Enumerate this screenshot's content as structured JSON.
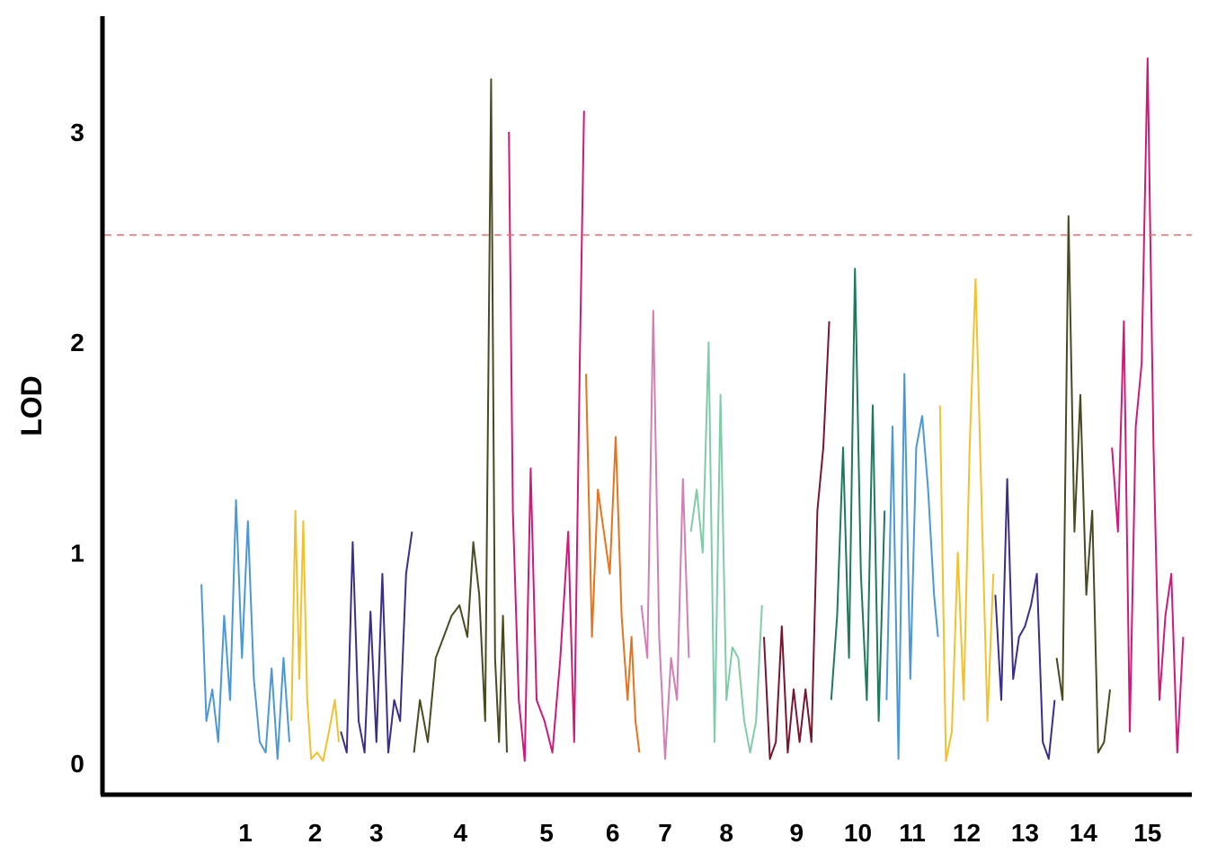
{
  "chart_data": {
    "type": "line",
    "title": "",
    "xlabel": "",
    "ylabel": "LOD",
    "ylim": [
      -0.15,
      3.55
    ],
    "yticks": [
      0,
      1,
      2,
      3
    ],
    "xlim": [
      0,
      1
    ],
    "grid": false,
    "legend": "none",
    "threshold": {
      "value": 2.51,
      "color": "#ff6b6b",
      "style": "dashed"
    },
    "series": [
      {
        "label": "1",
        "color": "#4a98d6",
        "x": [
          0.051,
          0.056,
          0.062,
          0.068,
          0.074,
          0.08,
          0.086,
          0.092,
          0.098,
          0.104,
          0.11,
          0.116,
          0.122,
          0.128,
          0.134,
          0.14
        ],
        "y": [
          0.85,
          0.2,
          0.35,
          0.1,
          0.7,
          0.3,
          1.25,
          0.5,
          1.15,
          0.4,
          0.1,
          0.05,
          0.45,
          0.02,
          0.5,
          0.1
        ]
      },
      {
        "label": "2",
        "color": "#f2c12e",
        "x": [
          0.142,
          0.146,
          0.15,
          0.154,
          0.158,
          0.162,
          0.168,
          0.174,
          0.18,
          0.186,
          0.19
        ],
        "y": [
          0.2,
          1.2,
          0.4,
          1.15,
          0.3,
          0.02,
          0.05,
          0.01,
          0.15,
          0.3,
          0.1
        ]
      },
      {
        "label": "3",
        "color": "#3b2e8a",
        "x": [
          0.192,
          0.198,
          0.204,
          0.21,
          0.216,
          0.222,
          0.228,
          0.234,
          0.24,
          0.246,
          0.252,
          0.258,
          0.264
        ],
        "y": [
          0.15,
          0.05,
          1.05,
          0.2,
          0.05,
          0.72,
          0.1,
          0.9,
          0.05,
          0.3,
          0.2,
          0.9,
          1.1
        ]
      },
      {
        "label": "4",
        "color": "#4a4a22",
        "x": [
          0.266,
          0.272,
          0.28,
          0.288,
          0.296,
          0.304,
          0.312,
          0.32,
          0.326,
          0.332,
          0.338,
          0.344,
          0.348,
          0.352,
          0.356,
          0.36
        ],
        "y": [
          0.05,
          0.3,
          0.1,
          0.5,
          0.6,
          0.7,
          0.75,
          0.6,
          1.05,
          0.8,
          0.2,
          3.25,
          0.5,
          0.1,
          0.7,
          0.05
        ]
      },
      {
        "label": "5",
        "color": "#d1197a",
        "x": [
          0.362,
          0.366,
          0.372,
          0.378,
          0.384,
          0.39,
          0.398,
          0.406,
          0.414,
          0.422,
          0.428,
          0.434,
          0.438
        ],
        "y": [
          3.0,
          1.2,
          0.3,
          0.01,
          1.4,
          0.3,
          0.2,
          0.05,
          0.5,
          1.1,
          0.1,
          2.0,
          3.1
        ]
      },
      {
        "label": "6",
        "color": "#e8731c",
        "x": [
          0.44,
          0.446,
          0.452,
          0.458,
          0.464,
          0.47,
          0.476,
          0.482,
          0.486,
          0.49,
          0.494
        ],
        "y": [
          1.85,
          0.6,
          1.3,
          1.1,
          0.9,
          1.55,
          0.7,
          0.3,
          0.6,
          0.2,
          0.05
        ]
      },
      {
        "label": "7",
        "color": "#d17fb5",
        "x": [
          0.496,
          0.502,
          0.508,
          0.514,
          0.52,
          0.526,
          0.532,
          0.538,
          0.544
        ],
        "y": [
          0.75,
          0.5,
          2.15,
          0.6,
          0.02,
          0.5,
          0.3,
          1.35,
          0.5
        ]
      },
      {
        "label": "8",
        "color": "#7fcca8",
        "x": [
          0.546,
          0.552,
          0.558,
          0.564,
          0.57,
          0.576,
          0.582,
          0.588,
          0.594,
          0.6,
          0.606,
          0.612,
          0.618
        ],
        "y": [
          1.1,
          1.3,
          1.0,
          2.0,
          0.1,
          1.75,
          0.3,
          0.55,
          0.5,
          0.2,
          0.05,
          0.2,
          0.75
        ]
      },
      {
        "label": "9",
        "color": "#7a1530",
        "x": [
          0.62,
          0.626,
          0.632,
          0.638,
          0.644,
          0.65,
          0.656,
          0.662,
          0.668,
          0.674,
          0.68,
          0.686
        ],
        "y": [
          0.6,
          0.02,
          0.1,
          0.65,
          0.05,
          0.35,
          0.1,
          0.35,
          0.1,
          1.2,
          1.5,
          2.1
        ]
      },
      {
        "label": "10",
        "color": "#1d7a5a",
        "x": [
          0.688,
          0.694,
          0.7,
          0.706,
          0.712,
          0.718,
          0.724,
          0.73,
          0.736,
          0.742
        ],
        "y": [
          0.3,
          0.7,
          1.5,
          0.5,
          2.35,
          0.9,
          0.3,
          1.7,
          0.2,
          1.2
        ]
      },
      {
        "label": "11",
        "color": "#4a98d6",
        "x": [
          0.744,
          0.75,
          0.756,
          0.762,
          0.768,
          0.774,
          0.78,
          0.786,
          0.792,
          0.796
        ],
        "y": [
          0.3,
          1.6,
          0.02,
          1.85,
          0.4,
          1.5,
          1.65,
          1.3,
          0.8,
          0.6
        ]
      },
      {
        "label": "12",
        "color": "#f2c12e",
        "x": [
          0.798,
          0.804,
          0.81,
          0.816,
          0.822,
          0.828,
          0.834,
          0.84,
          0.846,
          0.852
        ],
        "y": [
          1.7,
          0.01,
          0.15,
          1.0,
          0.3,
          1.5,
          2.3,
          1.25,
          0.2,
          0.9
        ]
      },
      {
        "label": "13",
        "color": "#3b2e8a",
        "x": [
          0.854,
          0.86,
          0.866,
          0.872,
          0.878,
          0.884,
          0.89,
          0.896,
          0.902,
          0.908,
          0.914
        ],
        "y": [
          0.8,
          0.3,
          1.35,
          0.4,
          0.6,
          0.65,
          0.75,
          0.9,
          0.1,
          0.02,
          0.3
        ]
      },
      {
        "label": "14",
        "color": "#4a4a22",
        "x": [
          0.916,
          0.922,
          0.928,
          0.934,
          0.94,
          0.946,
          0.952,
          0.958,
          0.964,
          0.97
        ],
        "y": [
          0.5,
          0.3,
          2.6,
          1.1,
          1.75,
          0.8,
          1.2,
          0.05,
          0.1,
          0.35
        ]
      },
      {
        "label": "15",
        "color": "#d1197a",
        "x": [
          0.972,
          0.978,
          0.984,
          0.99,
          0.996,
          1.002,
          1.008,
          1.014,
          1.02,
          1.026,
          1.032,
          1.038,
          1.044
        ],
        "y": [
          1.5,
          1.1,
          2.1,
          0.15,
          1.6,
          1.9,
          3.35,
          1.5,
          0.3,
          0.7,
          0.9,
          0.05,
          0.6
        ]
      }
    ],
    "ylabel_color": "#000000"
  }
}
